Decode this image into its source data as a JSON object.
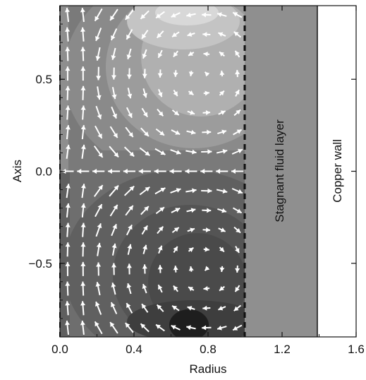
{
  "chart_data": {
    "type": "vector-field",
    "xlabel": "Radius",
    "ylabel": "Axis",
    "xlim": [
      0.0,
      1.6
    ],
    "ylim": [
      -0.9,
      0.9
    ],
    "xticks": [
      "0.0",
      "0.4",
      "0.8",
      "1.2",
      "1.6"
    ],
    "yticks": [
      "-0.5",
      "0.0",
      "0.5"
    ],
    "grid": false,
    "regions": [
      {
        "name": "Stagnant fluid layer",
        "x_range": [
          1.0,
          1.4
        ],
        "color": "#8f8f8f"
      },
      {
        "name": "Copper wall",
        "x_range": [
          1.4,
          1.6
        ],
        "color": "#ffffff"
      }
    ],
    "interface_line": {
      "x": 1.0,
      "style": "dashed"
    },
    "axis_line": {
      "x": 0.0,
      "style": "dashed"
    },
    "vortices": [
      {
        "center_r": 0.78,
        "center_z": 0.52,
        "rotation": "clockwise",
        "shade": "light"
      },
      {
        "center_r": 0.78,
        "center_z": -0.52,
        "rotation": "counterclockwise",
        "shade": "dark"
      }
    ]
  },
  "colors": {
    "background_mid": "#777777",
    "upper_light": "#d2d2d2",
    "upper_mid": "#a6a6a6",
    "lower_dark": "#4a4a4a",
    "lower_darkest": "#222222",
    "arrow": "#ffffff"
  }
}
